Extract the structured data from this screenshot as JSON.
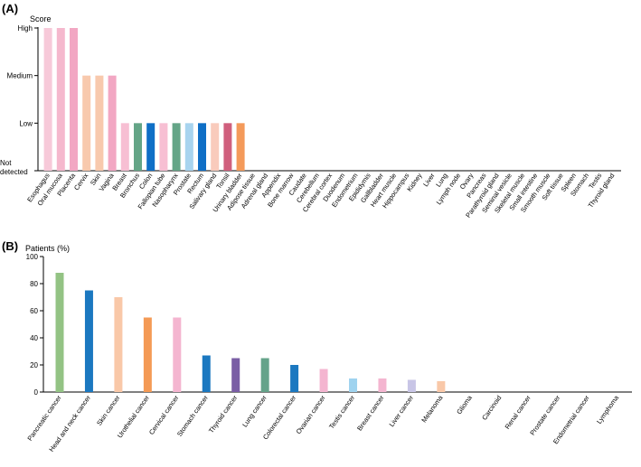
{
  "chart_data": [
    {
      "panel": "(A)",
      "type": "bar",
      "ylabel": "Score",
      "y_levels": [
        "Not detected",
        "Low",
        "Medium",
        "High"
      ],
      "y_level_values": [
        0,
        1,
        2,
        3
      ],
      "categories": [
        "Esophagus",
        "Oral mucosa",
        "Placenta",
        "Cervix",
        "Skin",
        "Vagina",
        "Breast",
        "Bronchus",
        "Colon",
        "Fallopian tube",
        "Nasopharynx",
        "Prostate",
        "Rectum",
        "Salivary gland",
        "Tonsil",
        "Urinary bladder",
        "Adipose tissue",
        "Adrenal gland",
        "Appendix",
        "Bone marrow",
        "Caudate",
        "Cerebellum",
        "Cerebral cortex",
        "Duodenum",
        "Endometrium",
        "Epididymis",
        "Gallbladder",
        "Heart muscle",
        "Hippocampus",
        "Kidney",
        "Liver",
        "Lung",
        "Lymph node",
        "Ovary",
        "Pancreas",
        "Parathyroid gland",
        "Seminal vesicle",
        "Skeletal muscle",
        "Small intestine",
        "Smooth muscle",
        "Soft tissue",
        "Spleen",
        "Stomach",
        "Testis",
        "Thyroid gland"
      ],
      "values": [
        3,
        3,
        3,
        2,
        2,
        2,
        1,
        1,
        1,
        1,
        1,
        1,
        1,
        1,
        1,
        1,
        0,
        0,
        0,
        0,
        0,
        0,
        0,
        0,
        0,
        0,
        0,
        0,
        0,
        0,
        0,
        0,
        0,
        0,
        0,
        0,
        0,
        0,
        0,
        0,
        0,
        0,
        0,
        0,
        0
      ],
      "colors": [
        "#f7c9d9",
        "#f5b8cd",
        "#f2a7c3",
        "#f8c9ad",
        "#f8c9ad",
        "#f2a7c3",
        "#f7bfd3",
        "#64a587",
        "#0f6fc6",
        "#f7bfd3",
        "#64a587",
        "#a8d4ef",
        "#0f6fc6",
        "#f9cbbc",
        "#d05f7d",
        "#f49a5a",
        "#ffffff",
        "#ffffff",
        "#ffffff",
        "#ffffff",
        "#ffffff",
        "#ffffff",
        "#ffffff",
        "#ffffff",
        "#ffffff",
        "#ffffff",
        "#ffffff",
        "#ffffff",
        "#ffffff",
        "#ffffff",
        "#ffffff",
        "#ffffff",
        "#ffffff",
        "#ffffff",
        "#ffffff",
        "#ffffff",
        "#ffffff",
        "#ffffff",
        "#ffffff",
        "#ffffff",
        "#ffffff",
        "#ffffff",
        "#ffffff",
        "#ffffff",
        "#ffffff"
      ],
      "ylim": [
        0,
        3
      ]
    },
    {
      "panel": "(B)",
      "type": "bar",
      "ylabel": "Patients (%)",
      "yticks": [
        0,
        20,
        40,
        60,
        80,
        100
      ],
      "ylim": [
        0,
        100
      ],
      "categories": [
        "Pancreatic cancer",
        "Head and neck cancer",
        "Skin cancer",
        "Urothelial cancer",
        "Cervical cancer",
        "Stomach cancer",
        "Thyroid cancer",
        "Lung cancer",
        "Colorectal cancer",
        "Ovarian cancer",
        "Testis cancer",
        "Breast cancer",
        "Liver cancer",
        "Melanoma",
        "Glioma",
        "Carcinoid",
        "Renal cancer",
        "Prostate cancer",
        "Endometrial cancer",
        "Lymphoma"
      ],
      "values": [
        88,
        75,
        70,
        55,
        55,
        27,
        25,
        25,
        20,
        17,
        10,
        10,
        9,
        8,
        0,
        0,
        0,
        0,
        0,
        0
      ],
      "colors": [
        "#93c384",
        "#1b78c0",
        "#f9c8a8",
        "#f49a55",
        "#f4b5d0",
        "#1b78c0",
        "#7a5ea5",
        "#65a38a",
        "#1b78c0",
        "#f4b5d0",
        "#9fd3ef",
        "#f4b5d0",
        "#c8c5e6",
        "#f9c8a8",
        "#ffffff",
        "#ffffff",
        "#ffffff",
        "#ffffff",
        "#ffffff",
        "#ffffff"
      ]
    }
  ]
}
